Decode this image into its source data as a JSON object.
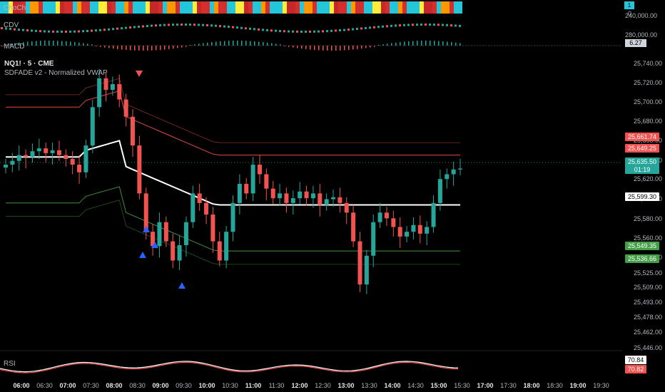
{
  "panes": {
    "choch_label": "ChoCh",
    "cdv_label": "CDV",
    "macd_label": "MACD",
    "rsi_label": "RSI",
    "pair_title": "NQ1! · 5 · CME",
    "indicator_title": "SDFADE v2 - Normalized VWAP"
  },
  "top_axis": {
    "badge": "1",
    "zero": "0",
    "cdv_ticks": [
      "240,000.00",
      "280,000.00"
    ],
    "macd_value": "6.27"
  },
  "price_axis": {
    "ticks": [
      "25,740.00",
      "25,720.00",
      "25,700.00",
      "25,680.00",
      "25,660.00",
      "25,640.00",
      "25,620.00",
      "25,599.30",
      "25,580.00",
      "25,560.00",
      "25,540.00",
      "25,525.00",
      "25,509.00",
      "25,493.00",
      "25,478.00",
      "25,462.00",
      "25,446.00"
    ]
  },
  "price_tags": [
    {
      "label": "25,661.74",
      "bg": "#f05350",
      "fg": "#ffffff"
    },
    {
      "label": "25,649.25",
      "bg": "#f05350",
      "fg": "#ffffff"
    },
    {
      "label": "25,635.50",
      "bg": "#26a69a",
      "fg": "#ffffff"
    },
    {
      "label": "01:19",
      "bg": "#26a69a",
      "fg": "#ffffff"
    },
    {
      "label": "25,599.30",
      "bg": "#ffffff",
      "fg": "#000000"
    },
    {
      "label": "25,549.35",
      "bg": "#43a047",
      "fg": "#ffffff"
    },
    {
      "label": "25,536.66",
      "bg": "#43a047",
      "fg": "#ffffff"
    }
  ],
  "rsi_tags": [
    {
      "label": "70.84",
      "bg": "#ffffff",
      "fg": "#000000"
    },
    {
      "label": "70.82",
      "bg": "#f05350",
      "fg": "#ffffff"
    }
  ],
  "time_axis": [
    {
      "label": "06:00",
      "bold": true
    },
    {
      "label": "06:30",
      "bold": false
    },
    {
      "label": "07:00",
      "bold": true
    },
    {
      "label": "07:30",
      "bold": false
    },
    {
      "label": "08:00",
      "bold": true
    },
    {
      "label": "08:30",
      "bold": false
    },
    {
      "label": "09:00",
      "bold": true
    },
    {
      "label": "09:30",
      "bold": false
    },
    {
      "label": "10:00",
      "bold": true
    },
    {
      "label": "10:30",
      "bold": false
    },
    {
      "label": "11:00",
      "bold": true
    },
    {
      "label": "11:30",
      "bold": false
    },
    {
      "label": "12:00",
      "bold": true
    },
    {
      "label": "12:30",
      "bold": false
    },
    {
      "label": "13:00",
      "bold": true
    },
    {
      "label": "13:30",
      "bold": false
    },
    {
      "label": "14:00",
      "bold": true
    },
    {
      "label": "14:30",
      "bold": false
    },
    {
      "label": "15:00",
      "bold": true
    },
    {
      "label": "15:30",
      "bold": false
    },
    {
      "label": "17:00",
      "bold": true
    },
    {
      "label": "17:30",
      "bold": false
    },
    {
      "label": "18:00",
      "bold": true
    },
    {
      "label": "18:30",
      "bold": false
    },
    {
      "label": "19:00",
      "bold": true
    },
    {
      "label": "19:30",
      "bold": false
    }
  ],
  "colors": {
    "bull": "#26a69a",
    "bear": "#f05350",
    "vwap": "#ffffff",
    "upper_band": "#e04a4a",
    "lower_band": "#3f8f3f",
    "signal_up": "#2962ff",
    "signal_down": "#f05350"
  },
  "chart_data": {
    "type": "candlestick",
    "symbol": "NQ1!",
    "interval": "5",
    "exchange": "CME",
    "ylim": [
      25440,
      25750
    ],
    "last_price": 25635.5,
    "vwap_last": 25599.3,
    "bands_last": {
      "upper_outer": 25661.74,
      "upper_inner": 25649.25,
      "lower_inner": 25549.35,
      "lower_outer": 25536.66
    },
    "series": [
      {
        "name": "close",
        "values": [
          25640,
          25644,
          25650,
          25648,
          25654,
          25657,
          25652,
          25655,
          25650,
          25646,
          25640,
          25632,
          25660,
          25700,
          25730,
          25718,
          25724,
          25708,
          25690,
          25660,
          25610,
          25570,
          25555,
          25580,
          25560,
          25540,
          25556,
          25580,
          25610,
          25600,
          25588,
          25560,
          25540,
          25570,
          25600,
          25620,
          25610,
          25640,
          25630,
          25615,
          25605,
          25610,
          25600,
          25605,
          25612,
          25605,
          25610,
          25598,
          25604,
          25606,
          25600,
          25590,
          25560,
          25515,
          25545,
          25580,
          25590,
          25584,
          25575,
          25565,
          25570,
          25577,
          25568,
          25575,
          25600,
          25625,
          25630,
          25635,
          25636
        ]
      }
    ],
    "rsi": {
      "last": 70.84,
      "signal_last": 70.82
    }
  }
}
